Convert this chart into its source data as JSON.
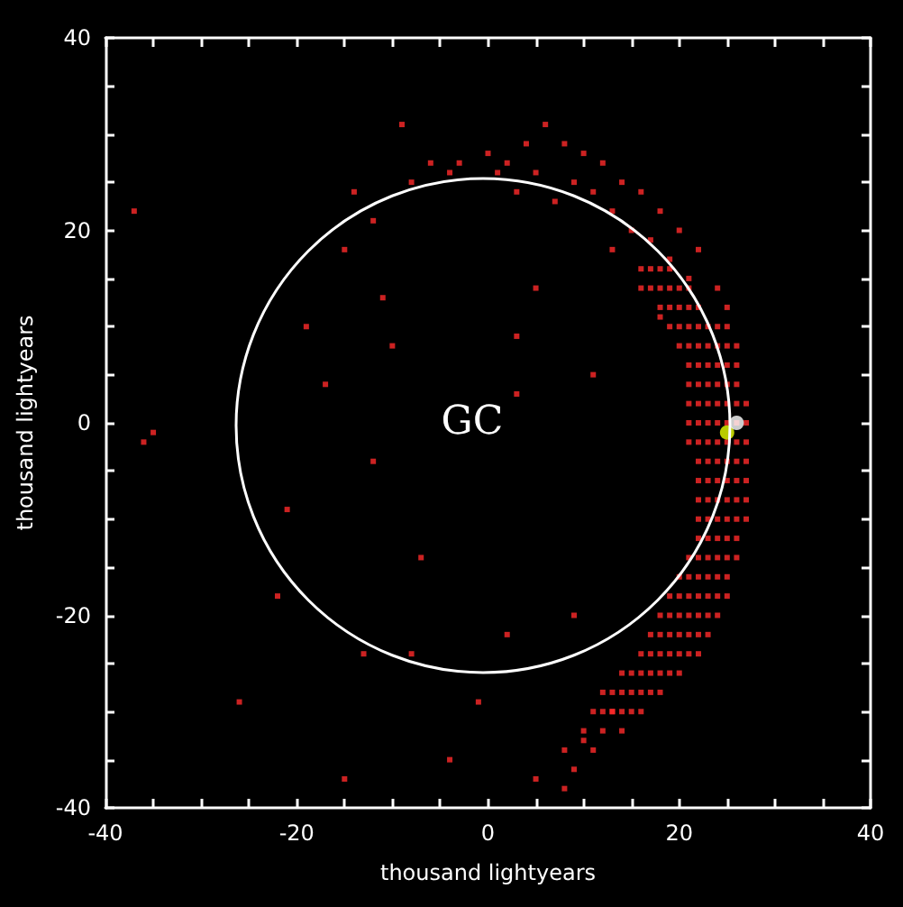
{
  "chart_data": {
    "type": "scatter",
    "xlabel": "thousand lightyears",
    "ylabel": "thousand lightyears",
    "xlim": [
      -40,
      40
    ],
    "ylim": [
      -40,
      40
    ],
    "xticks": [
      -40,
      {
        "value": -35,
        "label": null
      },
      {
        "value": -30,
        "label": null
      },
      {
        "value": -25,
        "label": null
      },
      -20,
      {
        "value": -15,
        "label": null
      },
      {
        "value": -10,
        "label": null
      },
      {
        "value": -5,
        "label": null
      },
      0,
      {
        "value": 5,
        "label": null
      },
      {
        "value": 10,
        "label": null
      },
      {
        "value": 15,
        "label": null
      },
      20,
      {
        "value": 25,
        "label": null
      },
      {
        "value": 30,
        "label": null
      },
      {
        "value": 35,
        "label": null
      },
      40
    ],
    "yticks": [
      -40,
      {
        "value": -35,
        "label": null
      },
      {
        "value": -30,
        "label": null
      },
      {
        "value": -25,
        "label": null
      },
      -20,
      {
        "value": -15,
        "label": null
      },
      {
        "value": -10,
        "label": null
      },
      {
        "value": -5,
        "label": null
      },
      0,
      {
        "value": 5,
        "label": null
      },
      {
        "value": 10,
        "label": null
      },
      {
        "value": 15,
        "label": null
      },
      20,
      {
        "value": 25,
        "label": null
      },
      {
        "value": 30,
        "label": null
      },
      {
        "value": 35,
        "label": null
      },
      40
    ],
    "grid": false,
    "annotations": [
      "GC"
    ],
    "series": [
      {
        "marker": "square",
        "color": "#ff2a2a",
        "x": [
          16,
          17,
          18,
          19,
          17,
          18,
          19,
          20,
          21,
          18,
          19,
          20,
          21,
          22,
          19,
          20,
          21,
          22,
          23,
          24,
          25,
          20,
          21,
          22,
          23,
          24,
          25,
          26,
          21,
          22,
          23,
          24,
          25,
          26,
          21,
          22,
          23,
          24,
          25,
          26,
          21,
          22,
          23,
          24,
          25,
          26,
          27,
          21,
          22,
          23,
          24,
          25,
          26,
          27,
          21,
          22,
          23,
          24,
          25,
          26,
          27,
          22,
          23,
          24,
          25,
          26,
          27,
          22,
          23,
          24,
          25,
          26,
          27,
          22,
          23,
          24,
          25,
          26,
          27,
          22,
          23,
          24,
          25,
          26,
          27,
          22,
          23,
          24,
          25,
          26,
          21,
          22,
          23,
          24,
          25,
          26,
          20,
          21,
          22,
          23,
          24,
          25,
          19,
          20,
          21,
          22,
          23,
          24,
          25,
          18,
          19,
          20,
          21,
          22,
          23,
          24,
          17,
          18,
          19,
          20,
          21,
          22,
          23,
          16,
          17,
          18,
          19,
          20,
          21,
          22,
          14,
          15,
          16,
          17,
          18,
          19,
          20,
          12,
          13,
          14,
          15,
          16,
          17,
          18,
          11,
          12,
          13,
          14,
          15,
          16,
          10,
          12,
          14,
          8,
          11,
          9,
          -6,
          -3,
          0,
          2,
          4,
          6,
          8,
          10,
          12,
          14,
          16,
          18,
          20,
          22,
          24,
          25,
          -8,
          -4,
          1,
          5,
          9,
          11,
          13,
          15,
          17,
          19,
          21,
          -9,
          3,
          7,
          13,
          16,
          18,
          -14,
          -12,
          -15,
          -11,
          -19,
          -17,
          -10,
          5,
          3,
          9,
          2,
          -22,
          -35,
          -36,
          -37,
          -26,
          -15,
          -4,
          5,
          -1,
          -7,
          -12,
          3,
          11,
          -21,
          -8,
          13,
          10,
          -13,
          8
        ],
        "values": [
          16,
          16,
          16,
          16,
          14,
          14,
          14,
          14,
          14,
          12,
          12,
          12,
          12,
          12,
          10,
          10,
          10,
          10,
          10,
          10,
          10,
          8,
          8,
          8,
          8,
          8,
          8,
          8,
          6,
          6,
          6,
          6,
          6,
          6,
          4,
          4,
          4,
          4,
          4,
          4,
          2,
          2,
          2,
          2,
          2,
          2,
          2,
          0,
          0,
          0,
          0,
          0,
          0,
          0,
          -2,
          -2,
          -2,
          -2,
          -2,
          -2,
          -2,
          -4,
          -4,
          -4,
          -4,
          -4,
          -4,
          -6,
          -6,
          -6,
          -6,
          -6,
          -6,
          -8,
          -8,
          -8,
          -8,
          -8,
          -8,
          -10,
          -10,
          -10,
          -10,
          -10,
          -10,
          -12,
          -12,
          -12,
          -12,
          -12,
          -14,
          -14,
          -14,
          -14,
          -14,
          -14,
          -16,
          -16,
          -16,
          -16,
          -16,
          -16,
          -18,
          -18,
          -18,
          -18,
          -18,
          -18,
          -18,
          -20,
          -20,
          -20,
          -20,
          -20,
          -20,
          -20,
          -22,
          -22,
          -22,
          -22,
          -22,
          -22,
          -22,
          -24,
          -24,
          -24,
          -24,
          -24,
          -24,
          -24,
          -26,
          -26,
          -26,
          -26,
          -26,
          -26,
          -26,
          -28,
          -28,
          -28,
          -28,
          -28,
          -28,
          -28,
          -30,
          -30,
          -30,
          -30,
          -30,
          -30,
          -32,
          -32,
          -32,
          -34,
          -34,
          -36,
          27,
          27,
          28,
          27,
          29,
          31,
          29,
          28,
          27,
          25,
          24,
          22,
          20,
          18,
          14,
          12,
          25,
          26,
          26,
          26,
          25,
          24,
          22,
          20,
          19,
          17,
          15,
          31,
          24,
          23,
          18,
          14,
          11,
          24,
          21,
          18,
          13,
          10,
          4,
          8,
          14,
          9,
          -20,
          -22,
          -18,
          -1,
          -2,
          22,
          -29,
          -37,
          -35,
          -37,
          -29,
          -14,
          -4,
          3,
          5,
          -9,
          -24,
          -30,
          -33,
          -24,
          -38
        ]
      },
      {
        "marker": "circle",
        "color": "#e8ff00",
        "x": [
          25
        ],
        "values": [
          -1
        ]
      },
      {
        "marker": "circle",
        "color": "#ffffff",
        "x": [
          26
        ],
        "values": [
          0
        ]
      }
    ]
  }
}
